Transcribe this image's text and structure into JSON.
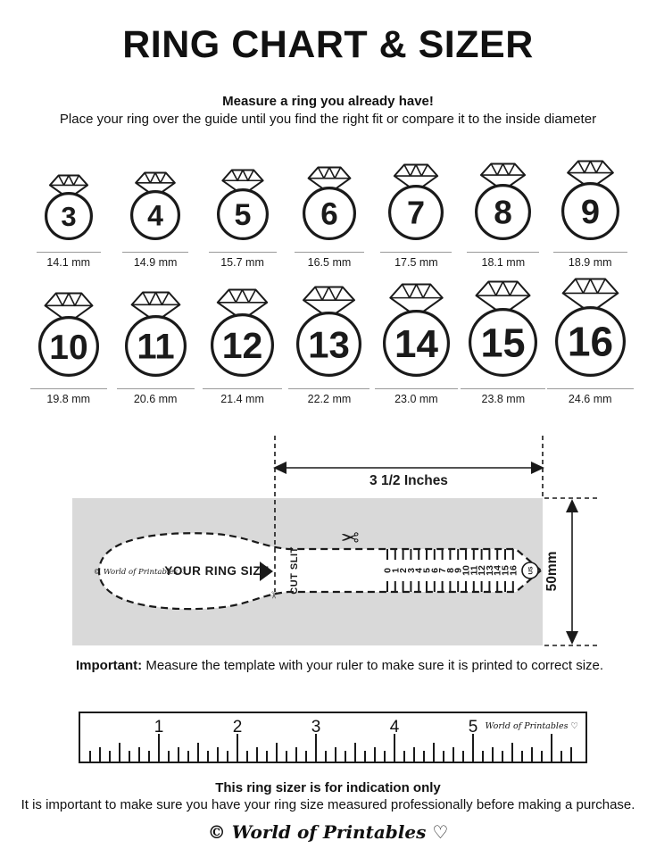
{
  "title": "RING CHART & SIZER",
  "intro": {
    "headline": "Measure a ring you already have!",
    "line": "Place your ring over the guide until you find the right fit or compare it to the inside diameter"
  },
  "ring_chart": {
    "rows": [
      {
        "rings": [
          {
            "size": "3",
            "diameter_label": "14.1 mm",
            "mm": 14.1
          },
          {
            "size": "4",
            "diameter_label": "14.9 mm",
            "mm": 14.9
          },
          {
            "size": "5",
            "diameter_label": "15.7 mm",
            "mm": 15.7
          },
          {
            "size": "6",
            "diameter_label": "16.5 mm",
            "mm": 16.5
          },
          {
            "size": "7",
            "diameter_label": "17.5 mm",
            "mm": 17.5
          },
          {
            "size": "8",
            "diameter_label": "18.1 mm",
            "mm": 18.1
          },
          {
            "size": "9",
            "diameter_label": "18.9 mm",
            "mm": 18.9
          }
        ]
      },
      {
        "rings": [
          {
            "size": "10",
            "diameter_label": "19.8 mm",
            "mm": 19.8
          },
          {
            "size": "11",
            "diameter_label": "20.6 mm",
            "mm": 20.6
          },
          {
            "size": "12",
            "diameter_label": "21.4 mm",
            "mm": 21.4
          },
          {
            "size": "13",
            "diameter_label": "22.2 mm",
            "mm": 22.2
          },
          {
            "size": "14",
            "diameter_label": "23.0 mm",
            "mm": 23.0
          },
          {
            "size": "15",
            "diameter_label": "23.8 mm",
            "mm": 23.8
          },
          {
            "size": "16",
            "diameter_label": "24.6 mm",
            "mm": 24.6
          }
        ]
      }
    ]
  },
  "sizer": {
    "width_label": "3 1/2 Inches",
    "height_label": "50mm",
    "brand": "© World of Printables ♡",
    "your_ring_size_label": "YOUR RING SIZE",
    "cut_slit_label": "CUT SLIT",
    "unit_badge": "US",
    "scale_numbers": [
      "0",
      "1",
      "2",
      "3",
      "4",
      "5",
      "6",
      "7",
      "8",
      "9",
      "10",
      "11",
      "12",
      "13",
      "14",
      "15",
      "16"
    ]
  },
  "important": {
    "label": "Important:",
    "text": " Measure the template with your ruler to make sure it is printed to correct size."
  },
  "ruler": {
    "numbers": [
      "1",
      "2",
      "3",
      "4",
      "5"
    ],
    "brand": "World of Printables ♡"
  },
  "footer": {
    "headline": "This ring sizer is for indication only",
    "line": "It is important to make sure you have your ring size measured professionally before making a purchase.",
    "brand": "© World of Printables ♡"
  },
  "colors": {
    "ink": "#1a1a1a",
    "template_bg": "#d9d9d9",
    "underline": "#999999"
  }
}
